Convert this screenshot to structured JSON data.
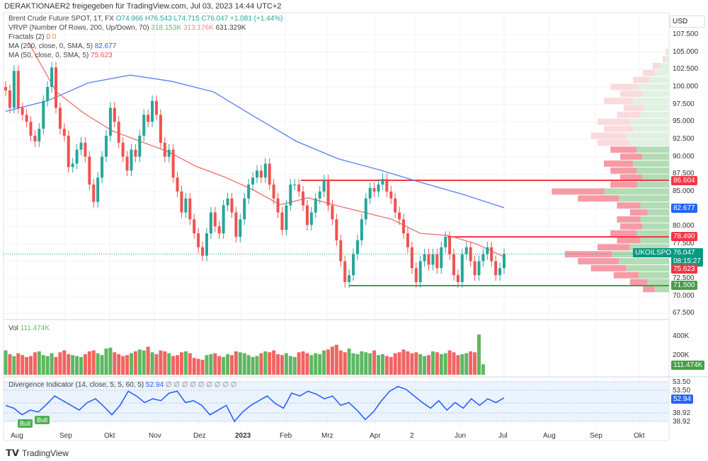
{
  "header": {
    "text": "DERAKTIONAER2 freigegeben für TradingView.com, Jul 03, 2023 14:44 UTC+2"
  },
  "legend": {
    "symbol": "Brent Crude Future SPOT, 1T, FX",
    "open": "O74.966",
    "high": "H76.543",
    "low": "L74.715",
    "close": "C76.047",
    "change": "+1.081 (+1.44%)",
    "vrvp": "VRVP (Number Of Rows, 200, Up/Down, 70)",
    "vrvp_up": "318.153K",
    "vrvp_down": "313.176K",
    "vrvp_total": "631.329K",
    "fractals": "Fractals (2)",
    "fractals_v1": "0",
    "fractals_v2": "0",
    "ma200": "MA (200, close, 0, SMA, 5)",
    "ma200_value": "82.677",
    "ma50": "MA (50, close, 0, SMA, 5)",
    "ma50_value": "75.623"
  },
  "volume_legend": {
    "label": "Vol",
    "value": "111.474K"
  },
  "divergence_legend": {
    "label": "Divergence Indicator (14, close, 5, 5, 60, 5)",
    "value": "52.94",
    "extras": "∅ ∅ ∅ ∅ ∅ ∅ ∅ ∅ ∅"
  },
  "price_axis": {
    "currency": "USD",
    "ticks": [
      "107.500",
      "105.000",
      "102.500",
      "100.000",
      "97.500",
      "95.000",
      "92.500",
      "90.000",
      "87.500",
      "85.000",
      "80.000",
      "77.500",
      "72.500",
      "70.000",
      "67.500"
    ]
  },
  "price_tags": {
    "resistance1": {
      "value": "86.604",
      "color": "#f23645"
    },
    "ma200": {
      "value": "82.677",
      "color": "#2962ff"
    },
    "resistance2": {
      "value": "78.490",
      "color": "#f23645"
    },
    "last": {
      "symbol": "UKOILSPOT",
      "value": "76.047",
      "countdown": "08:15:27",
      "color": "#089981"
    },
    "ma50": {
      "value": "75.623",
      "color": "#f23645"
    },
    "support": {
      "value": "71.500",
      "color": "#43a047"
    }
  },
  "volume_axis": {
    "ticks": [
      "400K",
      "200K"
    ],
    "tag": "111.474K"
  },
  "divergence_axis": {
    "ticks": [
      "53.50",
      "53.50",
      "38.92",
      "38.92"
    ],
    "tag": "52.94"
  },
  "bull_labels": [
    "Bull",
    "Bull"
  ],
  "time_axis": [
    "Aug",
    "Sep",
    "Okt",
    "Nov",
    "Dez",
    "2023",
    "Feb",
    "Mrz",
    "Apr",
    "2",
    "Jun",
    "Jul",
    "Aug",
    "Sep",
    "Okt"
  ],
  "footer": {
    "brand": "TradingView"
  },
  "chart_data": {
    "type": "candlestick",
    "ylim": [
      67.5,
      108.5
    ],
    "closes": [
      99.5,
      97,
      102.3,
      97,
      96,
      95,
      93,
      92.2,
      94,
      98,
      100,
      102.8,
      97,
      94,
      93,
      88.5,
      89,
      91,
      92,
      90,
      86,
      83.5,
      87,
      90,
      93,
      97,
      95,
      92,
      90,
      88,
      91,
      90,
      93,
      96,
      95,
      98,
      96,
      92,
      90,
      91,
      87,
      85,
      82,
      84,
      81,
      79,
      77,
      75.8,
      79,
      82,
      80,
      79,
      83,
      84,
      82,
      78.5,
      81,
      84,
      86,
      87,
      88,
      87,
      89,
      86,
      84,
      82,
      79.5,
      83,
      86,
      86,
      85,
      83,
      80.2,
      82,
      84,
      85,
      86.6,
      83,
      81,
      78,
      75,
      72,
      73,
      76,
      78,
      81,
      84,
      85.5,
      85,
      86,
      86.8,
      85,
      84,
      82,
      81,
      79,
      77,
      74,
      72,
      75,
      76,
      74.5,
      76,
      74,
      77,
      78.5,
      76,
      73,
      72,
      76,
      77,
      75,
      73,
      75,
      76,
      77,
      75,
      73,
      74,
      76.047
    ],
    "volume_k": [
      260,
      220,
      200,
      230,
      210,
      190,
      200,
      240,
      250,
      210,
      200,
      230,
      190,
      240,
      260,
      220,
      210,
      200,
      190,
      220,
      250,
      260,
      230,
      210,
      280,
      290,
      240,
      220,
      200,
      210,
      230,
      250,
      270,
      260,
      300,
      240,
      220,
      260,
      250,
      230,
      200,
      210,
      240,
      250,
      230,
      180,
      170,
      160,
      210,
      220,
      230,
      200,
      190,
      220,
      210,
      250,
      240,
      230,
      210,
      190,
      200,
      230,
      250,
      240,
      260,
      220,
      210,
      230,
      200,
      190,
      240,
      250,
      230,
      210,
      230,
      220,
      260,
      270,
      300,
      320,
      260,
      240,
      280,
      230,
      220,
      250,
      240,
      230,
      260,
      210,
      220,
      200,
      190,
      230,
      240,
      270,
      250,
      230,
      240,
      220,
      200,
      210,
      250,
      240,
      220,
      230,
      260,
      240,
      210,
      220,
      230,
      250,
      240,
      430,
      111.474
    ],
    "ma200": [
      96.5,
      98,
      100.6,
      101.7,
      100.8,
      99.3,
      95.7,
      92.2,
      89.7,
      88.1,
      86.3,
      84.6,
      82.677
    ],
    "ma50": [
      106.4,
      99.3,
      96.2,
      93.7,
      92.2,
      90.7,
      88.6,
      87.1,
      85.3,
      83.1,
      84.1,
      83,
      82,
      81,
      79,
      78.7,
      77.5,
      75.623
    ],
    "horizontal_levels": [
      86.604,
      78.49,
      71.5
    ],
    "volume_profile": {
      "prices": [
        105,
        104,
        103,
        102,
        101,
        100,
        99,
        98,
        97,
        96,
        95,
        94,
        93,
        92,
        91,
        90,
        89,
        88,
        87,
        86,
        85,
        84,
        83,
        82,
        81,
        80,
        79,
        78,
        77,
        76,
        75,
        74,
        73,
        72,
        71
      ],
      "totals": [
        5,
        10,
        25,
        40,
        55,
        90,
        75,
        100,
        70,
        80,
        110,
        100,
        120,
        110,
        90,
        75,
        100,
        90,
        75,
        90,
        180,
        140,
        80,
        60,
        80,
        75,
        90,
        80,
        110,
        160,
        140,
        120,
        85,
        60,
        40
      ]
    },
    "divergence": [
      45,
      42,
      35,
      40,
      38,
      46,
      55,
      50,
      45,
      40,
      48,
      52,
      44,
      35,
      45,
      60,
      55,
      48,
      52,
      50,
      58,
      60,
      48,
      50,
      45,
      35,
      40,
      45,
      28,
      38,
      45,
      50,
      55,
      47,
      42,
      58,
      55,
      60,
      57,
      52,
      55,
      45,
      48,
      40,
      30,
      38,
      50,
      60,
      65,
      62,
      55,
      48,
      42,
      50,
      40,
      48,
      42,
      52,
      45,
      52,
      48,
      53
    ]
  }
}
